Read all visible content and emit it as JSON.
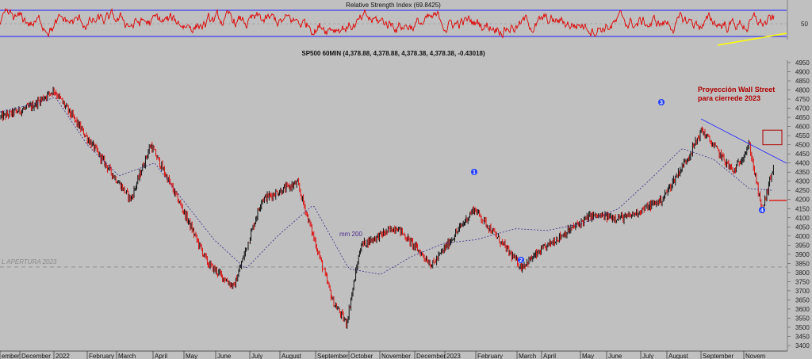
{
  "rsi_panel": {
    "title": "Relative Strength Index (69.8425)",
    "level_label": "50",
    "upper_band": 70,
    "lower_band": 30,
    "range": [
      0,
      100
    ]
  },
  "price_panel": {
    "title": "SP500 60MIN (4,378.88, 4,378.88, 4,378.38, 4,378.38, -0.43018)",
    "ylim": [
      3400,
      4975
    ],
    "y_ticks": [
      4950,
      4900,
      4850,
      4800,
      4750,
      4700,
      4650,
      4600,
      4550,
      4500,
      4450,
      4400,
      4350,
      4300,
      4250,
      4200,
      4150,
      4100,
      4050,
      4000,
      3950,
      3900,
      3850,
      3800,
      3750,
      3700,
      3650,
      3600,
      3550,
      3500,
      3450,
      3400
    ],
    "y_tick_labels": [
      "4950",
      "4900",
      "4850",
      "4800",
      "4750",
      "4700",
      "4650",
      "4600",
      "4550",
      "4500",
      "4450",
      "4400",
      "4350",
      "4300",
      "4250",
      "4200",
      "4150",
      "4100",
      "4050",
      "4000",
      "3950",
      "3900",
      "3850",
      "3800",
      "3750",
      "3700",
      "3650",
      "3600",
      "3550",
      "3500",
      "3450",
      "3400"
    ],
    "ma_label": "mm 200",
    "reference_line_label": "L APERTURA 2023",
    "reference_level": 3830,
    "annotation": {
      "line1": "Proyección Wall Street",
      "line2": "para cierrede  2023",
      "box_range": [
        4500,
        4580
      ],
      "color": "#b00000"
    },
    "marker_level": 4195,
    "wave_labels": [
      "1",
      "2",
      "3",
      "4"
    ]
  },
  "x_axis": {
    "months": [
      "ember",
      "December",
      "2022",
      "February",
      "March",
      "April",
      "May",
      "June",
      "July",
      "August",
      "September",
      "October",
      "November",
      "December",
      "2023",
      "February",
      "March",
      "April",
      "May",
      "June",
      "July",
      "August",
      "September",
      "Novem"
    ]
  },
  "chart_data": {
    "type": "line",
    "title": "SP500 60MIN (4,378.88, 4,378.88, 4,378.38, 4,378.38, -0.43018)",
    "xlabel": "",
    "ylabel": "",
    "ylim": [
      3400,
      4975
    ],
    "grid": false,
    "series": [
      {
        "color": "#000000",
        "x": [
          "2021-11",
          "2021-12",
          "2022-01",
          "2022-01",
          "2022-02",
          "2022-03",
          "2022-04",
          "2022-05",
          "2022-06",
          "2022-07",
          "2022-08",
          "2022-09",
          "2022-10",
          "2022-10",
          "2022-11",
          "2022-12",
          "2023-01",
          "2023-02",
          "2023-03",
          "2023-03",
          "2023-04",
          "2023-05",
          "2023-06",
          "2023-07",
          "2023-08",
          "2023-09",
          "2023-10",
          "2023-10",
          "2023-11"
        ],
        "values": [
          4650,
          4710,
          4800,
          4600,
          4350,
          4200,
          4500,
          4150,
          3850,
          3720,
          4200,
          4290,
          3640,
          3520,
          3950,
          4050,
          3840,
          4150,
          3830,
          3980,
          4110,
          4100,
          4200,
          4450,
          4580,
          4350,
          4500,
          4130,
          4375
        ]
      },
      {
        "name": "mm 200",
        "color": "#3a2a8c",
        "x": [
          "2021-11",
          "2021-12",
          "2022-01",
          "2022-02",
          "2022-03",
          "2022-04",
          "2022-05",
          "2022-06",
          "2022-07",
          "2022-08",
          "2022-09",
          "2022-10",
          "2022-11",
          "2022-12",
          "2023-01",
          "2023-02",
          "2023-03",
          "2023-04",
          "2023-05",
          "2023-06",
          "2023-07",
          "2023-08",
          "2023-09",
          "2023-10",
          "2023-11"
        ],
        "values": [
          4680,
          4720,
          4760,
          4500,
          4330,
          4400,
          4200,
          3980,
          3820,
          4000,
          4170,
          3820,
          3790,
          3890,
          3960,
          3980,
          4040,
          4030,
          4070,
          4150,
          4310,
          4480,
          4420,
          4260,
          4250
        ]
      }
    ]
  }
}
